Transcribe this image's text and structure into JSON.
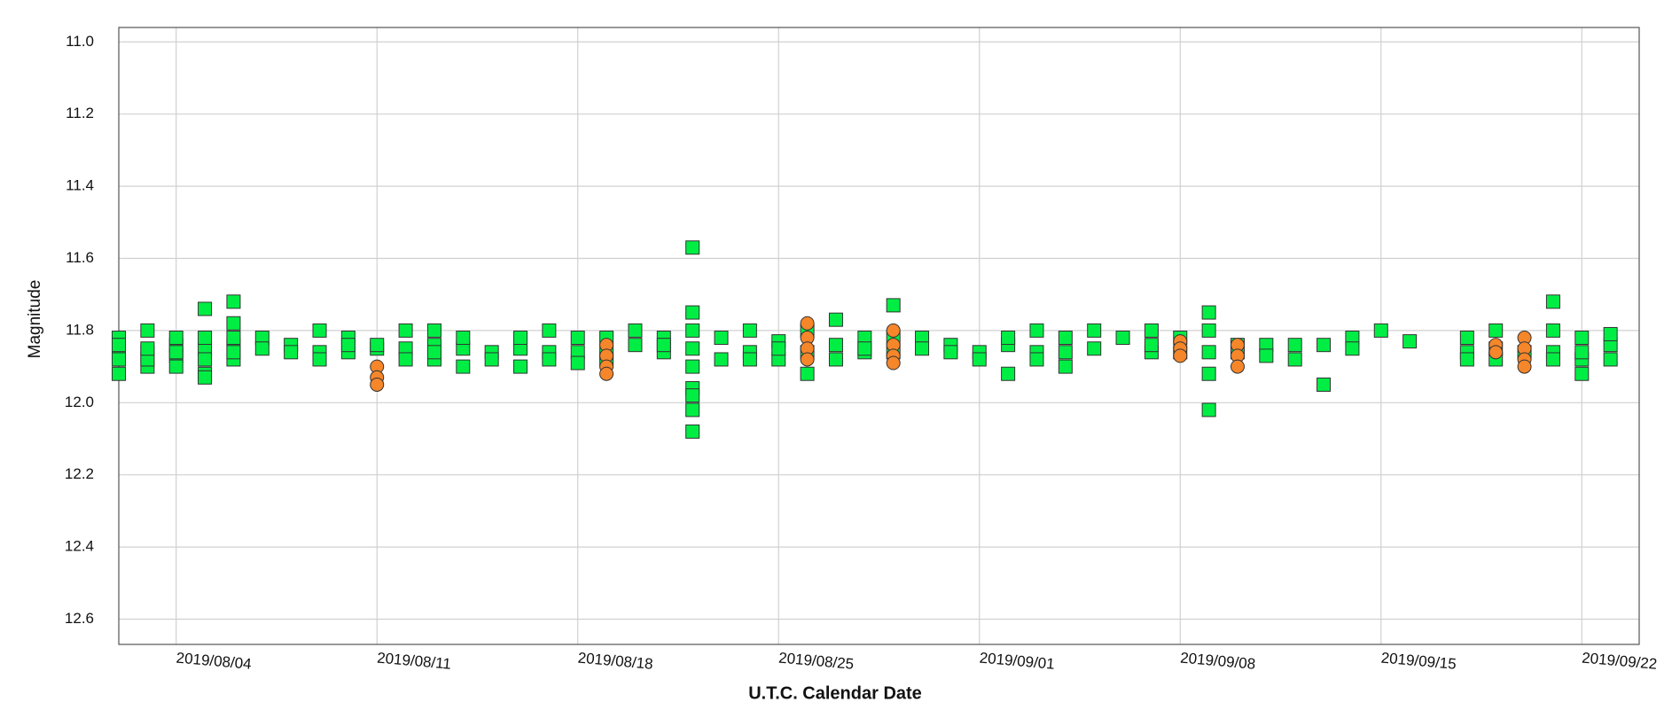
{
  "chart_data": {
    "type": "scatter",
    "x_label": "U.T.C. Calendar Date",
    "y_label": "Magnitude",
    "xlim": [
      "2019/08/02",
      "2019/09/24"
    ],
    "ylim": [
      12.67,
      10.96
    ],
    "xticks": [
      "2019/08/04",
      "2019/08/11",
      "2019/08/18",
      "2019/08/25",
      "2019/09/01",
      "2019/09/08",
      "2019/09/15",
      "2019/09/22"
    ],
    "yticks": [
      {
        "value": 11.0,
        "label": "11.0"
      },
      11.2,
      11.4,
      11.6,
      11.8,
      {
        "value": 12.0,
        "label": "12.0"
      },
      12.2,
      12.4,
      12.6
    ],
    "grid": true,
    "series": [
      {
        "color": "#00ee44",
        "marker": "square",
        "x": [
          "2019/08/02",
          "2019/08/02",
          "2019/08/02",
          "2019/08/02",
          "2019/08/02",
          "2019/08/03",
          "2019/08/03",
          "2019/08/03",
          "2019/08/03",
          "2019/08/03",
          "2019/08/04",
          "2019/08/04",
          "2019/08/04",
          "2019/08/04",
          "2019/08/04",
          "2019/08/05",
          "2019/08/05",
          "2019/08/05",
          "2019/08/05",
          "2019/08/05",
          "2019/08/05",
          "2019/08/06",
          "2019/08/06",
          "2019/08/06",
          "2019/08/06",
          "2019/08/06",
          "2019/08/06",
          "2019/08/07",
          "2019/08/07",
          "2019/08/08",
          "2019/08/08",
          "2019/08/09",
          "2019/08/09",
          "2019/08/09",
          "2019/08/10",
          "2019/08/10",
          "2019/08/10",
          "2019/08/11",
          "2019/08/11",
          "2019/08/12",
          "2019/08/12",
          "2019/08/12",
          "2019/08/13",
          "2019/08/13",
          "2019/08/13",
          "2019/08/13",
          "2019/08/14",
          "2019/08/14",
          "2019/08/14",
          "2019/08/15",
          "2019/08/15",
          "2019/08/16",
          "2019/08/16",
          "2019/08/16",
          "2019/08/17",
          "2019/08/17",
          "2019/08/17",
          "2019/08/18",
          "2019/08/18",
          "2019/08/18",
          "2019/08/19",
          "2019/08/19",
          "2019/08/19",
          "2019/08/20",
          "2019/08/20",
          "2019/08/21",
          "2019/08/21",
          "2019/08/21",
          "2019/08/22",
          "2019/08/22",
          "2019/08/22",
          "2019/08/22",
          "2019/08/22",
          "2019/08/22",
          "2019/08/22",
          "2019/08/22",
          "2019/08/22",
          "2019/08/23",
          "2019/08/23",
          "2019/08/24",
          "2019/08/24",
          "2019/08/24",
          "2019/08/25",
          "2019/08/25",
          "2019/08/25",
          "2019/08/26",
          "2019/08/26",
          "2019/08/26",
          "2019/08/27",
          "2019/08/27",
          "2019/08/27",
          "2019/08/28",
          "2019/08/28",
          "2019/08/28",
          "2019/08/29",
          "2019/08/29",
          "2019/08/29",
          "2019/08/30",
          "2019/08/30",
          "2019/08/31",
          "2019/08/31",
          "2019/09/01",
          "2019/09/01",
          "2019/09/02",
          "2019/09/02",
          "2019/09/02",
          "2019/09/03",
          "2019/09/03",
          "2019/09/03",
          "2019/09/04",
          "2019/09/04",
          "2019/09/04",
          "2019/09/05",
          "2019/09/05",
          "2019/09/06",
          "2019/09/07",
          "2019/09/07",
          "2019/09/07",
          "2019/09/08",
          "2019/09/08",
          "2019/09/09",
          "2019/09/09",
          "2019/09/09",
          "2019/09/09",
          "2019/09/09",
          "2019/09/10",
          "2019/09/10",
          "2019/09/11",
          "2019/09/11",
          "2019/09/12",
          "2019/09/12",
          "2019/09/13",
          "2019/09/13",
          "2019/09/14",
          "2019/09/14",
          "2019/09/15",
          "2019/09/16",
          "2019/09/18",
          "2019/09/18",
          "2019/09/18",
          "2019/09/19",
          "2019/09/19",
          "2019/09/19",
          "2019/09/20",
          "2019/09/21",
          "2019/09/21",
          "2019/09/21",
          "2019/09/21",
          "2019/09/22",
          "2019/09/22",
          "2019/09/22",
          "2019/09/22",
          "2019/09/23",
          "2019/09/23",
          "2019/09/23"
        ],
        "values": [
          11.82,
          11.85,
          11.88,
          11.84,
          11.92,
          11.8,
          11.86,
          11.9,
          11.88,
          11.85,
          11.87,
          11.84,
          11.9,
          11.82,
          11.86,
          11.74,
          11.85,
          11.92,
          11.88,
          11.82,
          11.93,
          11.72,
          11.78,
          11.84,
          11.88,
          11.82,
          11.86,
          11.82,
          11.85,
          11.84,
          11.86,
          11.8,
          11.86,
          11.88,
          11.82,
          11.86,
          11.84,
          11.85,
          11.84,
          11.8,
          11.85,
          11.88,
          11.8,
          11.84,
          11.88,
          11.86,
          11.85,
          11.9,
          11.82,
          11.86,
          11.88,
          11.85,
          11.82,
          11.9,
          11.8,
          11.86,
          11.88,
          11.82,
          11.86,
          11.89,
          11.82,
          11.88,
          11.86,
          11.8,
          11.84,
          11.82,
          11.86,
          11.84,
          11.57,
          11.75,
          11.8,
          11.85,
          11.9,
          11.96,
          11.98,
          12.02,
          12.08,
          11.82,
          11.88,
          11.8,
          11.86,
          11.88,
          11.83,
          11.88,
          11.85,
          11.8,
          11.86,
          11.92,
          11.77,
          11.84,
          11.88,
          11.82,
          11.86,
          11.85,
          11.73,
          11.82,
          11.86,
          11.82,
          11.85,
          11.84,
          11.86,
          11.86,
          11.88,
          11.84,
          11.92,
          11.82,
          11.8,
          11.86,
          11.88,
          11.82,
          11.9,
          11.86,
          11.8,
          11.85,
          11.82,
          11.8,
          11.86,
          11.84,
          11.82,
          11.86,
          11.75,
          11.8,
          11.86,
          11.92,
          12.02,
          11.84,
          11.86,
          11.84,
          11.87,
          11.84,
          11.88,
          11.84,
          11.95,
          11.82,
          11.85,
          11.8,
          11.83,
          11.82,
          11.86,
          11.88,
          11.8,
          11.85,
          11.88,
          11.86,
          11.72,
          11.8,
          11.86,
          11.88,
          11.82,
          11.88,
          11.92,
          11.86,
          11.84,
          11.88,
          11.81
        ]
      },
      {
        "color": "#f5862a",
        "marker": "circle",
        "x": [
          "2019/08/11",
          "2019/08/11",
          "2019/08/11",
          "2019/08/19",
          "2019/08/19",
          "2019/08/19",
          "2019/08/19",
          "2019/08/26",
          "2019/08/26",
          "2019/08/26",
          "2019/08/26",
          "2019/08/29",
          "2019/08/29",
          "2019/08/29",
          "2019/08/29",
          "2019/09/08",
          "2019/09/08",
          "2019/09/08",
          "2019/09/10",
          "2019/09/10",
          "2019/09/10",
          "2019/09/19",
          "2019/09/19",
          "2019/09/20",
          "2019/09/20",
          "2019/09/20",
          "2019/09/20"
        ],
        "values": [
          11.9,
          11.93,
          11.95,
          11.84,
          11.87,
          11.9,
          11.92,
          11.78,
          11.82,
          11.85,
          11.88,
          11.8,
          11.84,
          11.87,
          11.89,
          11.83,
          11.85,
          11.87,
          11.84,
          11.87,
          11.9,
          11.84,
          11.86,
          11.82,
          11.85,
          11.88,
          11.9
        ]
      }
    ]
  }
}
